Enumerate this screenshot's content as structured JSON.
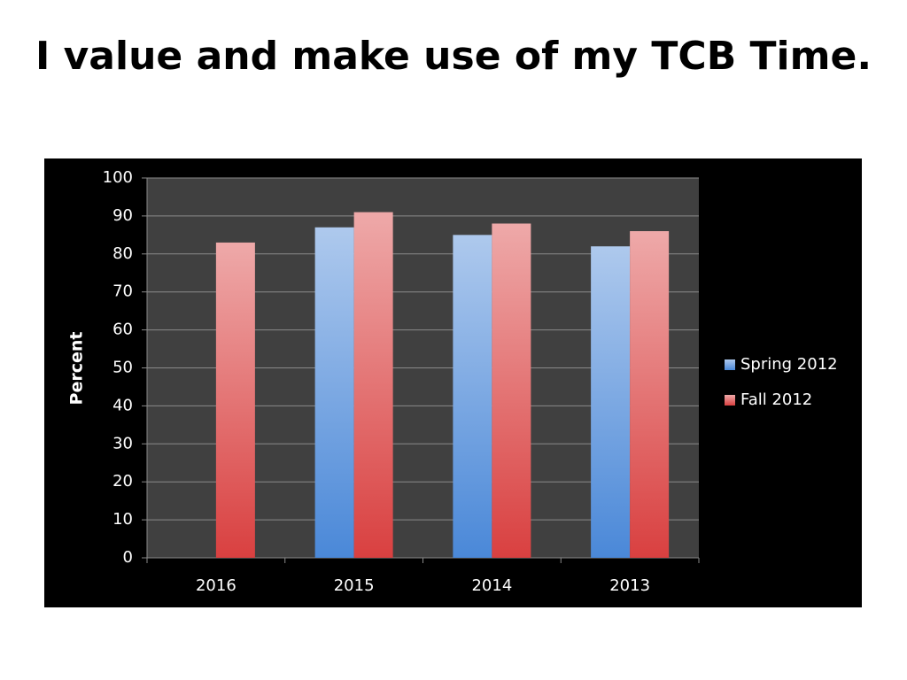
{
  "chart_data": {
    "type": "bar",
    "title": "I value and make use of my TCB Time.",
    "y_label": "Percent",
    "categories": [
      "2016",
      "2015",
      "2014",
      "2013"
    ],
    "series": [
      {
        "name": "Spring 2012",
        "color": "#4a88d8",
        "values": [
          null,
          87,
          85,
          82
        ]
      },
      {
        "name": "Fall 2012",
        "color": "#d94040",
        "values": [
          83,
          91,
          88,
          86
        ]
      }
    ],
    "ylim": [
      0,
      100
    ],
    "yticks": [
      0,
      10,
      20,
      30,
      40,
      50,
      60,
      70,
      80,
      90,
      100
    ],
    "grid": true,
    "legend": "right"
  }
}
